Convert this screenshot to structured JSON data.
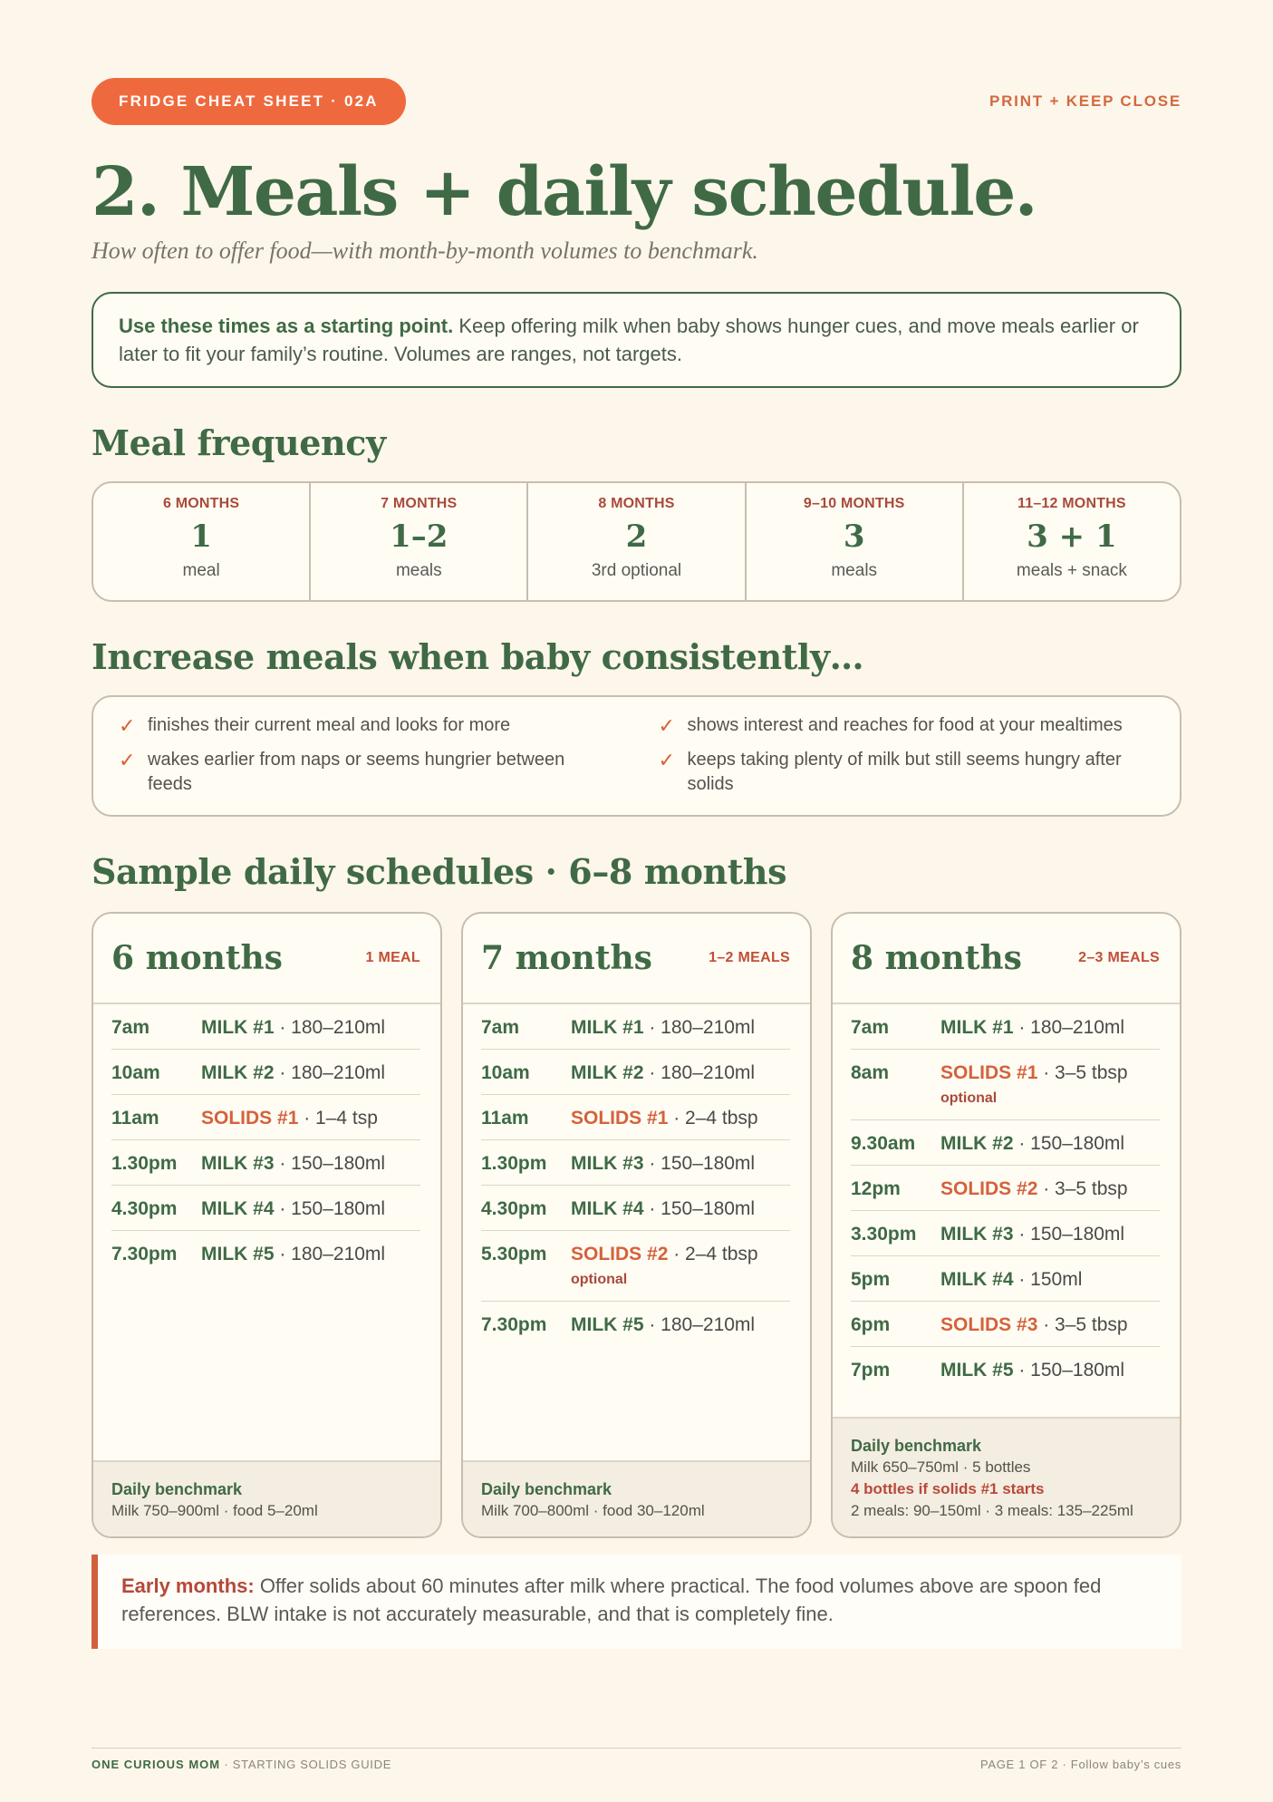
{
  "header": {
    "pill": "FRIDGE CHEAT SHEET · 02A",
    "print_note": "PRINT + KEEP CLOSE"
  },
  "title": "2. Meals + daily schedule.",
  "subtitle": "How often to offer food—with month-by-month volumes to benchmark.",
  "intro": {
    "bold": "Use these times as a starting point.",
    "text": " Keep offering milk when baby shows hunger cues, and move meals earlier or later to fit your family’s routine. Volumes are ranges, not targets."
  },
  "frequency": {
    "heading": "Meal frequency",
    "cells": [
      {
        "age": "6 MONTHS",
        "num": "1",
        "unit": "meal"
      },
      {
        "age": "7 MONTHS",
        "num": "1–2",
        "unit": "meals"
      },
      {
        "age": "8 MONTHS",
        "num": "2",
        "unit": "3rd optional"
      },
      {
        "age": "9–10 MONTHS",
        "num": "3",
        "unit": "meals"
      },
      {
        "age": "11–12 MONTHS",
        "num": "3 + 1",
        "unit": "meals + snack"
      }
    ]
  },
  "increase": {
    "heading": "Increase meals when baby consistently…",
    "items": [
      "finishes their current meal and looks for more",
      "shows interest and reaches for food at your mealtimes",
      "wakes earlier from naps or seems hungrier between feeds",
      "keeps taking plenty of milk but still seems hungry after solids"
    ]
  },
  "schedules": {
    "heading": "Sample daily schedules · 6–8 months",
    "cards": [
      {
        "age": "6 months",
        "meals": "1 MEAL",
        "rows": [
          {
            "time": "7am",
            "label": "MILK #1",
            "amount": " · 180–210ml"
          },
          {
            "time": "10am",
            "label": "MILK #2",
            "amount": " · 180–210ml"
          },
          {
            "time": "11am",
            "label": "SOLIDS #1",
            "amount": " · 1–4 tsp"
          },
          {
            "time": "1.30pm",
            "label": "MILK #3",
            "amount": " · 150–180ml"
          },
          {
            "time": "4.30pm",
            "label": "MILK #4",
            "amount": " · 150–180ml"
          },
          {
            "time": "7.30pm",
            "label": "MILK #5",
            "amount": " · 180–210ml"
          }
        ],
        "bench_title": "Daily benchmark",
        "bench_line1": "Milk 750–900ml · food 5–20ml"
      },
      {
        "age": "7 months",
        "meals": "1–2 MEALS",
        "rows": [
          {
            "time": "7am",
            "label": "MILK #1",
            "amount": " · 180–210ml"
          },
          {
            "time": "10am",
            "label": "MILK #2",
            "amount": " · 180–210ml"
          },
          {
            "time": "11am",
            "label": "SOLIDS #1",
            "amount": " · 2–4 tbsp"
          },
          {
            "time": "1.30pm",
            "label": "MILK #3",
            "amount": " · 150–180ml"
          },
          {
            "time": "4.30pm",
            "label": "MILK #4",
            "amount": " · 150–180ml"
          },
          {
            "time": "5.30pm",
            "label": "SOLIDS #2",
            "amount": " · 2–4 tbsp",
            "note": "optional"
          },
          {
            "time": "7.30pm",
            "label": "MILK #5",
            "amount": " · 180–210ml"
          }
        ],
        "bench_title": "Daily benchmark",
        "bench_line1": "Milk 700–800ml · food 30–120ml"
      },
      {
        "age": "8 months",
        "meals": "2–3 MEALS",
        "rows": [
          {
            "time": "7am",
            "label": "MILK #1",
            "amount": " · 180–210ml"
          },
          {
            "time": "8am",
            "label": "SOLIDS #1",
            "amount": " · 3–5 tbsp",
            "note": "optional"
          },
          {
            "time": "9.30am",
            "label": "MILK #2",
            "amount": " · 150–180ml"
          },
          {
            "time": "12pm",
            "label": "SOLIDS #2",
            "amount": " · 3–5 tbsp"
          },
          {
            "time": "3.30pm",
            "label": "MILK #3",
            "amount": " · 150–180ml"
          },
          {
            "time": "5pm",
            "label": "MILK #4",
            "amount": " · 150ml"
          },
          {
            "time": "6pm",
            "label": "SOLIDS #3",
            "amount": " · 3–5 tbsp"
          },
          {
            "time": "7pm",
            "label": "MILK #5",
            "amount": " · 150–180ml"
          }
        ],
        "bench_title": "Daily benchmark",
        "bench_line1": "Milk 650–750ml · 5 bottles",
        "bench_warn": "4 bottles if solids #1 starts",
        "bench_line2": "2 meals: 90–150ml · 3 meals: 135–225ml"
      }
    ]
  },
  "note": {
    "bold": "Early months:",
    "text": " Offer solids about 60 minutes after milk where practical. The food volumes above are spoon fed references. BLW intake is not accurately measurable, and that is completely fine."
  },
  "footer": {
    "brand": "ONE CURIOUS MOM",
    "guide": " · STARTING SOLIDS GUIDE",
    "page": "PAGE 1 OF 2 · Follow baby’s cues"
  },
  "colors": {
    "green": "#3f6a45",
    "orange": "#ee6a3e",
    "red": "#a94a3a",
    "background": "#fdf6ea"
  }
}
